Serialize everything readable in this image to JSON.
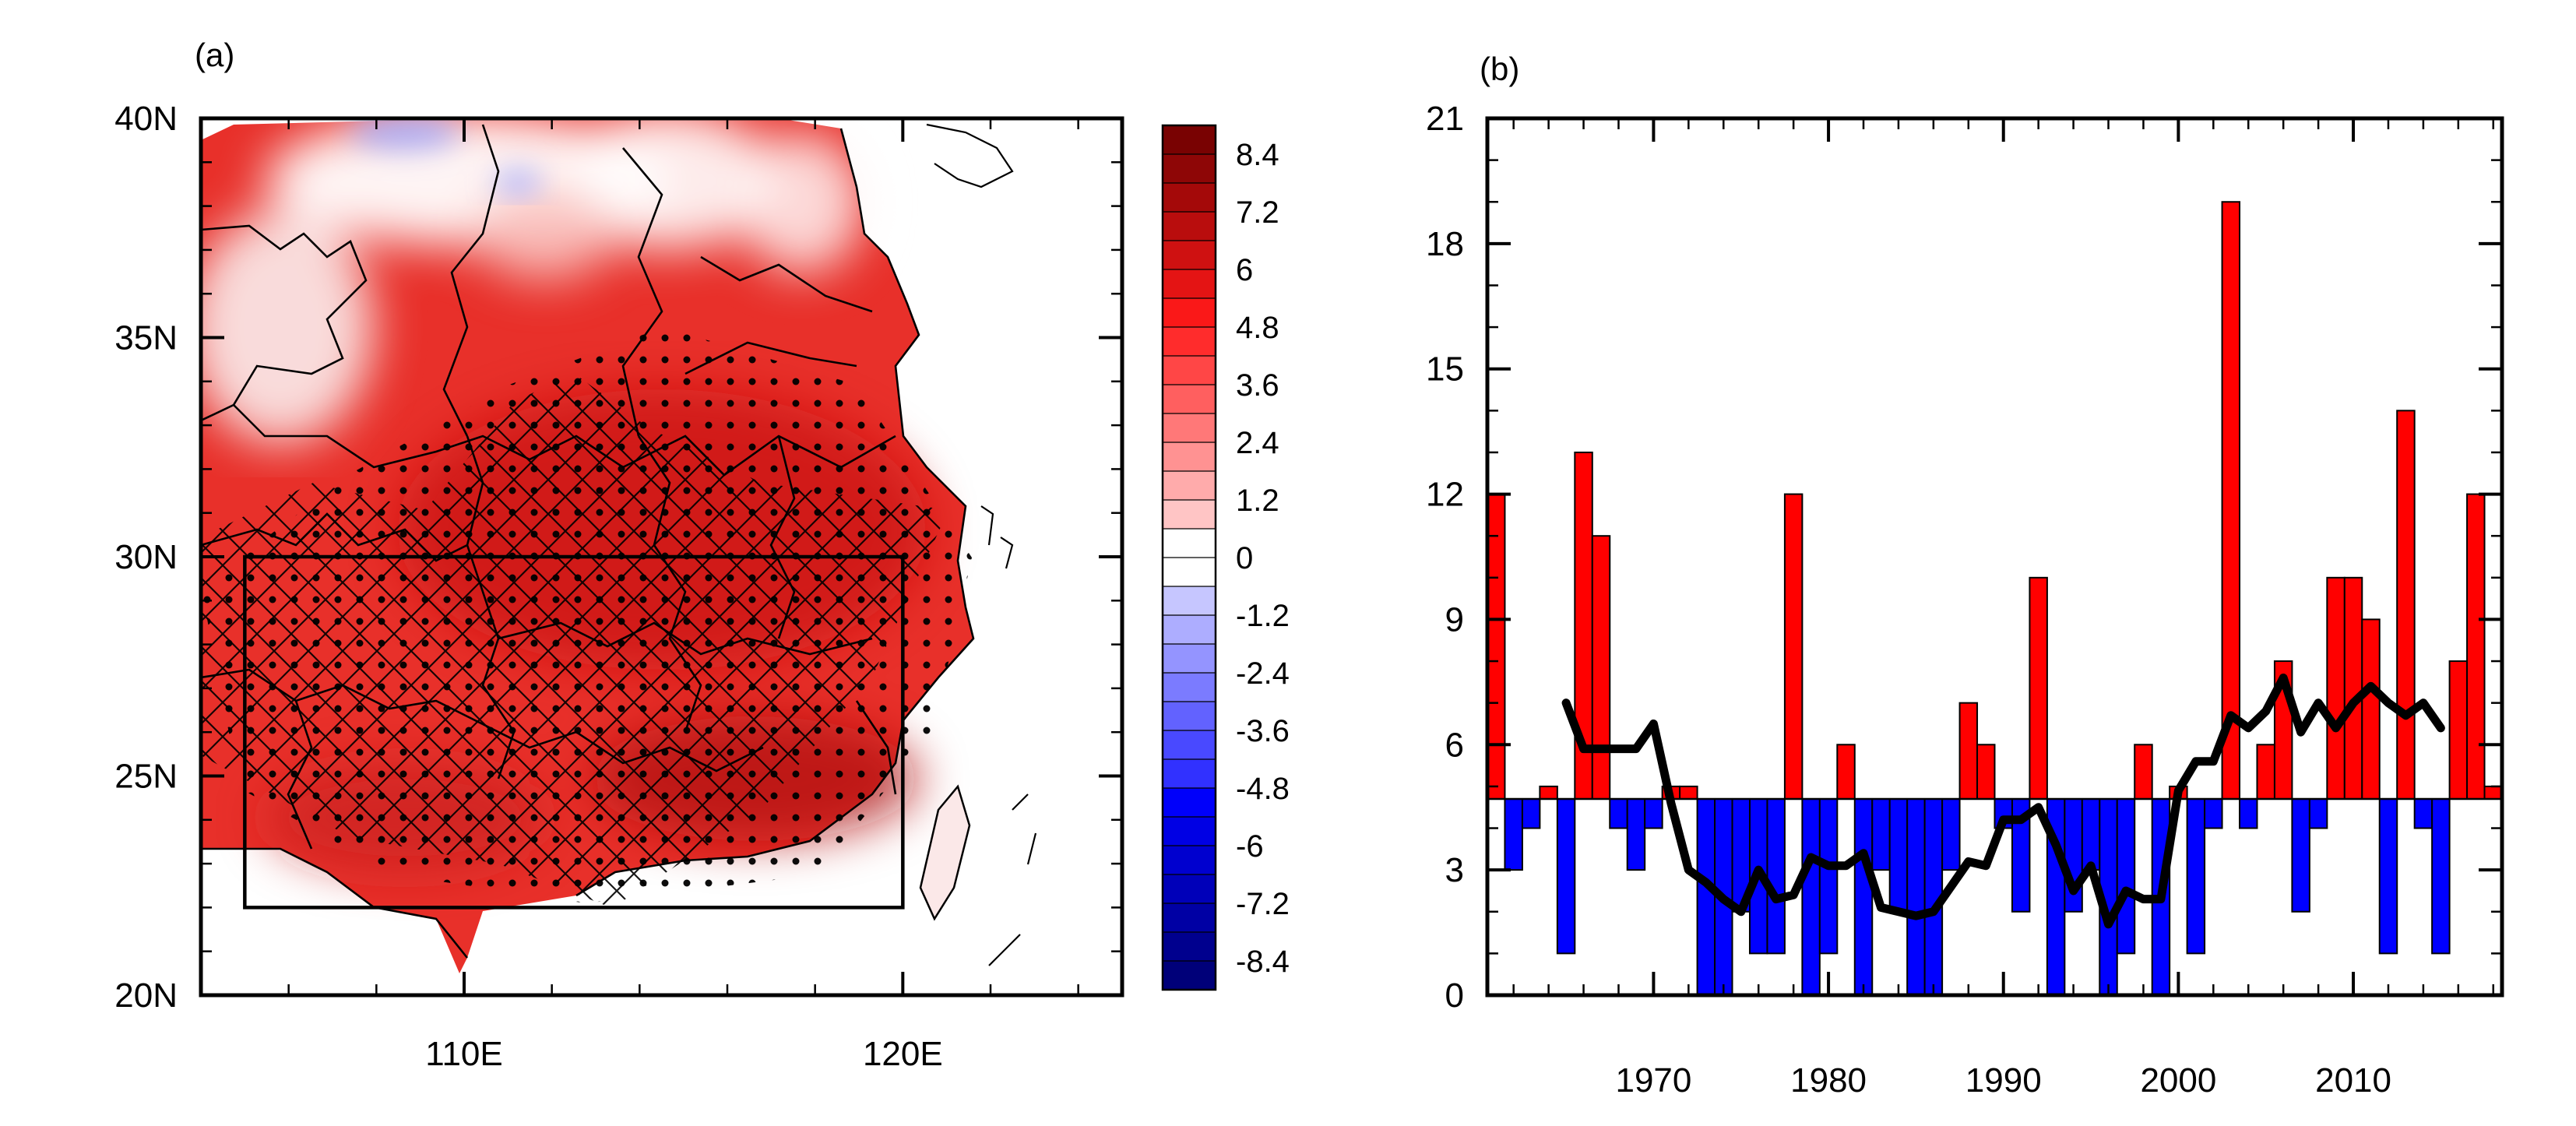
{
  "figure": {
    "panel_a_label": "(a)",
    "panel_b_label": "(b)"
  },
  "colors": {
    "positive_bar": "#ff0000",
    "negative_bar": "#0000ff",
    "line": "#000000",
    "map_warm": "#e8302a",
    "map_hot": "#c81414"
  },
  "chart_data": [
    {
      "type": "heatmap",
      "panel": "(a)",
      "description_hidden": true,
      "x_axis": {
        "ticks": [
          110,
          120
        ],
        "tick_labels": [
          "110E",
          "120E"
        ],
        "range": [
          104,
          125
        ]
      },
      "y_axis": {
        "ticks": [
          20,
          25,
          30,
          35,
          40
        ],
        "tick_labels": [
          "20N",
          "25N",
          "30N",
          "35N",
          "40N"
        ],
        "range": [
          20,
          40
        ]
      },
      "box_region": {
        "lon": [
          105,
          120
        ],
        "lat": [
          22,
          30
        ]
      },
      "colorbar": {
        "range": [
          -9.0,
          9.0
        ],
        "step": 0.6,
        "labels": [
          "8.4",
          "7.2",
          "6",
          "4.8",
          "3.6",
          "2.4",
          "1.2",
          "0",
          "-1.2",
          "-2.4",
          "-3.6",
          "-4.8",
          "-6",
          "-7.2",
          "-8.4"
        ],
        "label_values": [
          8.4,
          7.2,
          6,
          4.8,
          3.6,
          2.4,
          1.2,
          0,
          -1.2,
          -2.4,
          -3.6,
          -4.8,
          -6,
          -7.2,
          -8.4
        ]
      }
    },
    {
      "type": "bar",
      "panel": "(b)",
      "baseline": 4.7,
      "x_axis": {
        "range": [
          1961,
          2018
        ],
        "ticks": [
          1970,
          1980,
          1990,
          2000,
          2010
        ],
        "tick_labels": [
          "1970",
          "1980",
          "1990",
          "2000",
          "2010"
        ]
      },
      "y_axis": {
        "range": [
          0,
          21
        ],
        "ticks": [
          0,
          3,
          6,
          9,
          12,
          15,
          18,
          21
        ],
        "tick_labels": [
          "0",
          "3",
          "6",
          "9",
          "12",
          "15",
          "18",
          "21"
        ]
      },
      "years": [
        1961,
        1962,
        1963,
        1964,
        1965,
        1966,
        1967,
        1968,
        1969,
        1970,
        1971,
        1972,
        1973,
        1974,
        1975,
        1976,
        1977,
        1978,
        1979,
        1980,
        1981,
        1982,
        1983,
        1984,
        1985,
        1986,
        1987,
        1988,
        1989,
        1990,
        1991,
        1992,
        1993,
        1994,
        1995,
        1996,
        1997,
        1998,
        1999,
        2000,
        2001,
        2002,
        2003,
        2004,
        2005,
        2006,
        2007,
        2008,
        2009,
        2010,
        2011,
        2012,
        2013,
        2014,
        2015,
        2016,
        2017,
        2018
      ],
      "values": [
        12,
        3,
        4,
        5,
        1,
        13,
        11,
        4,
        3,
        4,
        5,
        5,
        0,
        0,
        2,
        1,
        1,
        12,
        0,
        1,
        6,
        0,
        3,
        2,
        0,
        0,
        3,
        7,
        6,
        4,
        2,
        10,
        0,
        2,
        3,
        0,
        1,
        6,
        0,
        5,
        1,
        4,
        19,
        4,
        6,
        8,
        2,
        4,
        10,
        10,
        9,
        1,
        14,
        4,
        1,
        8,
        12,
        5
      ],
      "line": {
        "years": [
          1965,
          1966,
          1967,
          1968,
          1969,
          1970,
          1971,
          1972,
          1973,
          1974,
          1975,
          1976,
          1977,
          1978,
          1979,
          1980,
          1981,
          1982,
          1983,
          1984,
          1985,
          1986,
          1987,
          1988,
          1989,
          1990,
          1991,
          1992,
          1993,
          1994,
          1995,
          1996,
          1997,
          1998,
          1999,
          2000,
          2001,
          2002,
          2003,
          2004,
          2005,
          2006,
          2007,
          2008,
          2009,
          2010,
          2011,
          2012,
          2013,
          2014,
          2015
        ],
        "values": [
          7.0,
          5.9,
          5.9,
          5.9,
          5.9,
          6.5,
          4.6,
          3.0,
          2.7,
          2.3,
          2.0,
          3.0,
          2.3,
          2.4,
          3.3,
          3.1,
          3.1,
          3.4,
          2.1,
          2.0,
          1.9,
          2.0,
          2.6,
          3.2,
          3.1,
          4.2,
          4.2,
          4.5,
          3.6,
          2.5,
          3.1,
          1.7,
          2.5,
          2.3,
          2.3,
          4.9,
          5.6,
          5.6,
          6.7,
          6.4,
          6.8,
          7.6,
          6.3,
          7.0,
          6.4,
          7.0,
          7.4,
          7.0,
          6.7,
          7.0,
          6.4
        ]
      }
    }
  ]
}
